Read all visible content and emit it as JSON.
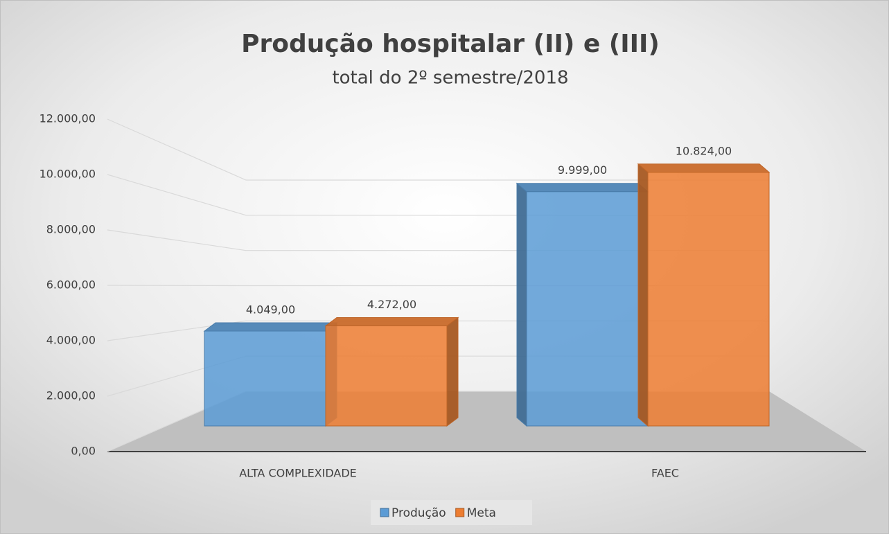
{
  "chart_data": {
    "type": "bar3d",
    "title": "Produção hospitalar (II) e (III)",
    "subtitle": "total do 2º semestre/2018",
    "categories": [
      "ALTA COMPLEXIDADE",
      "FAEC"
    ],
    "series": [
      {
        "name": "Produção",
        "color": "#5b9bd5",
        "values": [
          4049,
          9999
        ],
        "value_labels": [
          "4.049,00",
          "9.999,00"
        ]
      },
      {
        "name": "Meta",
        "color": "#ed7d31",
        "values": [
          4272,
          10824
        ],
        "value_labels": [
          "4.272,00",
          "10.824,00"
        ]
      }
    ],
    "ylim": [
      0,
      12000
    ],
    "yticks": [
      {
        "value": 0,
        "label": "0,00"
      },
      {
        "value": 2000,
        "label": "2.000,00"
      },
      {
        "value": 4000,
        "label": "4.000,00"
      },
      {
        "value": 6000,
        "label": "6.000,00"
      },
      {
        "value": 8000,
        "label": "8.000,00"
      },
      {
        "value": 10000,
        "label": "10.000,00"
      },
      {
        "value": 12000,
        "label": "12.000,00"
      }
    ],
    "grid": true,
    "legend": "bottom"
  }
}
